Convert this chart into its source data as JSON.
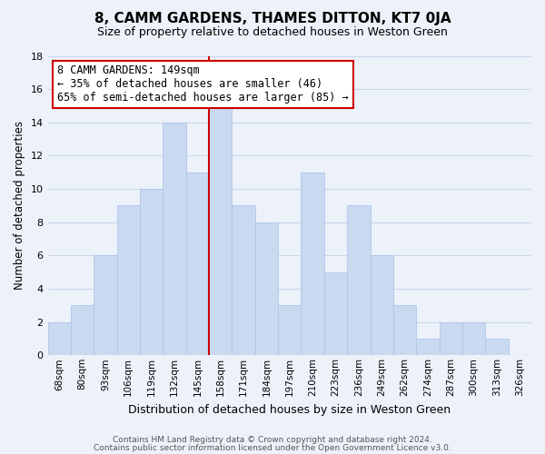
{
  "title": "8, CAMM GARDENS, THAMES DITTON, KT7 0JA",
  "subtitle": "Size of property relative to detached houses in Weston Green",
  "xlabel": "Distribution of detached houses by size in Weston Green",
  "ylabel": "Number of detached properties",
  "categories": [
    "68sqm",
    "80sqm",
    "93sqm",
    "106sqm",
    "119sqm",
    "132sqm",
    "145sqm",
    "158sqm",
    "171sqm",
    "184sqm",
    "197sqm",
    "210sqm",
    "223sqm",
    "236sqm",
    "249sqm",
    "262sqm",
    "274sqm",
    "287sqm",
    "300sqm",
    "313sqm",
    "326sqm"
  ],
  "values": [
    2,
    3,
    6,
    9,
    10,
    14,
    11,
    15,
    9,
    8,
    3,
    11,
    5,
    9,
    6,
    3,
    1,
    2,
    2,
    1,
    0
  ],
  "bar_color": "#c9d9f0",
  "bar_edge_color": "#aec6e8",
  "highlight_bar_index": 6,
  "highlight_line_color": "#cc0000",
  "annotation_title": "8 CAMM GARDENS: 149sqm",
  "annotation_line1": "← 35% of detached houses are smaller (46)",
  "annotation_line2": "65% of semi-detached houses are larger (85) →",
  "annotation_box_edge_color": "#cc0000",
  "annotation_box_face_color": "#ffffff",
  "ylim": [
    0,
    18
  ],
  "yticks": [
    0,
    2,
    4,
    6,
    8,
    10,
    12,
    14,
    16,
    18
  ],
  "footer1": "Contains HM Land Registry data © Crown copyright and database right 2024.",
  "footer2": "Contains public sector information licensed under the Open Government Licence v3.0.",
  "grid_color": "#c8d8ec",
  "background_color": "#edf2fa",
  "title_fontsize": 11,
  "subtitle_fontsize": 9,
  "ylabel_fontsize": 8.5,
  "xlabel_fontsize": 9,
  "tick_fontsize": 8,
  "xtick_fontsize": 7.5,
  "annotation_fontsize": 8.5,
  "footer_fontsize": 6.5
}
